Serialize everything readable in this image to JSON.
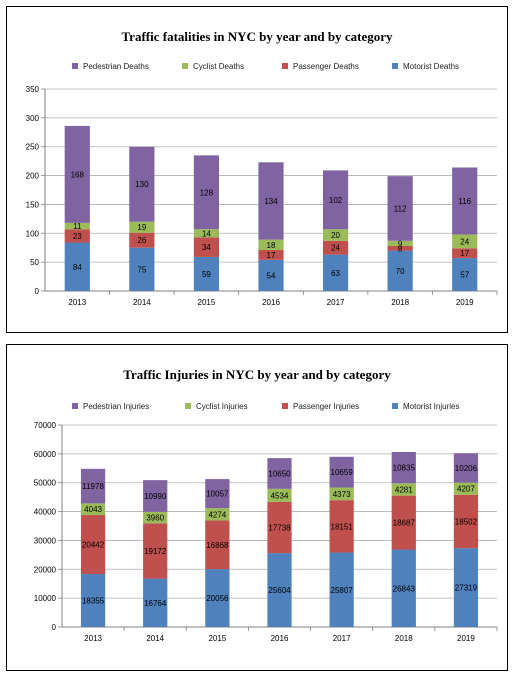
{
  "chart_data": [
    {
      "type": "bar",
      "stacked": true,
      "title": "Traffic fatalities in NYC by year and by category",
      "categories": [
        "2013",
        "2014",
        "2015",
        "2016",
        "2017",
        "2018",
        "2019"
      ],
      "ylim": [
        0,
        350
      ],
      "yticks": [
        "0",
        "50",
        "100",
        "150",
        "200",
        "250",
        "300",
        "350"
      ],
      "grid": true,
      "legend_position": "top",
      "series": [
        {
          "name": "Motorist Deaths",
          "color": "#4f81bd",
          "values": [
            84,
            75,
            59,
            54,
            63,
            70,
            57
          ]
        },
        {
          "name": "Passenger Deaths",
          "color": "#c0504d",
          "values": [
            23,
            26,
            34,
            17,
            24,
            8,
            17
          ]
        },
        {
          "name": "Cyclist Deaths",
          "color": "#9bbb59",
          "values": [
            11,
            19,
            14,
            18,
            20,
            9,
            24
          ]
        },
        {
          "name": "Pedestrian Deaths",
          "color": "#8064a2",
          "values": [
            168,
            130,
            128,
            134,
            102,
            112,
            116
          ]
        }
      ],
      "legend_order": [
        "Pedestrian Deaths",
        "Cyclist Deaths",
        "Passenger Deaths",
        "Motorist Deaths"
      ]
    },
    {
      "type": "bar",
      "stacked": true,
      "title": "Traffic Injuries in NYC by year and by category",
      "categories": [
        "2013",
        "2014",
        "2015",
        "2016",
        "2017",
        "2018",
        "2019"
      ],
      "ylim": [
        0,
        70000
      ],
      "yticks": [
        "0",
        "10000",
        "20000",
        "30000",
        "40000",
        "50000",
        "60000",
        "70000"
      ],
      "grid": true,
      "legend_position": "top",
      "series": [
        {
          "name": "Motorist Injuries",
          "color": "#4f81bd",
          "values": [
            18355,
            16764,
            20056,
            25604,
            25807,
            26843,
            27319
          ]
        },
        {
          "name": "Passenger Injuries",
          "color": "#c0504d",
          "values": [
            20442,
            19172,
            16868,
            17738,
            18151,
            18687,
            18502
          ]
        },
        {
          "name": "Cyclist Injuries",
          "color": "#9bbb59",
          "values": [
            4043,
            3960,
            4274,
            4534,
            4373,
            4281,
            4207
          ]
        },
        {
          "name": "Pedestrian Injuries",
          "color": "#8064a2",
          "values": [
            11978,
            10990,
            10057,
            10650,
            10659,
            10835,
            10206
          ]
        }
      ],
      "legend_order": [
        "Pedestrian Injuries",
        "Cyclist Injuries",
        "Passenger Injuries",
        "Motorist Injuries"
      ]
    }
  ]
}
